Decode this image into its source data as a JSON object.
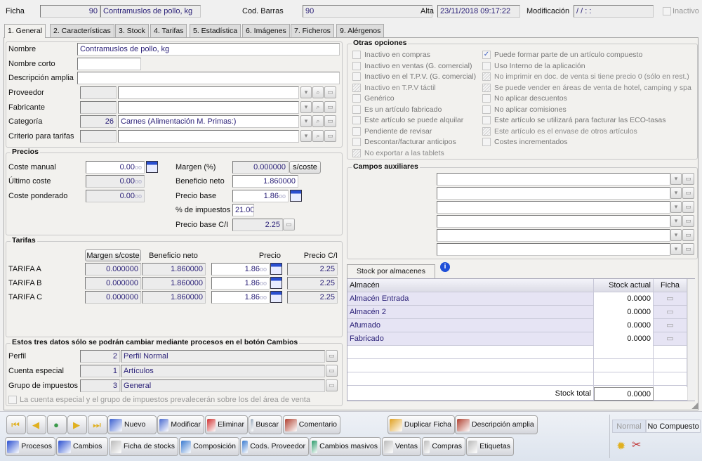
{
  "header": {
    "ficha_label": "Ficha",
    "ficha_num": "90",
    "ficha_name": "Contramuslos de pollo, kg",
    "barcode_label": "Cod. Barras",
    "barcode": "90",
    "alta_label": "Alta",
    "alta": "23/11/2018 09:17:22",
    "mod_label": "Modificación",
    "mod": "  /  /          :  :",
    "inactive_label": "Inactivo",
    "inactive_checked": false
  },
  "tabs": [
    "1. General",
    "2. Características",
    "3. Stock",
    "4. Tarifas",
    "5. Estadística",
    "6. Imágenes",
    "7. Ficheros",
    "9. Alérgenos"
  ],
  "general": {
    "rows": [
      {
        "label": "Nombre",
        "value": "Contramuslos de pollo, kg"
      },
      {
        "label": "Nombre corto",
        "value": ""
      },
      {
        "label": "Descripción amplia",
        "value": ""
      },
      {
        "label": "Proveedor",
        "code": "",
        "value": ""
      },
      {
        "label": "Fabricante",
        "code": "",
        "value": ""
      },
      {
        "label": "Categoría",
        "code": "26",
        "value": "Carnes (Alimentación M. Primas:)"
      },
      {
        "label": "Criterio para tarifas",
        "code": "",
        "value": ""
      }
    ]
  },
  "precios": {
    "title": "Precios",
    "coste_manual_label": "Coste manual",
    "coste_manual": "0.00",
    "decimals": "oo",
    "ultimo_coste_label": "Último coste",
    "ultimo_coste": "0.00",
    "coste_pond_label": "Coste ponderado",
    "coste_pond": "0.00",
    "margen_label": "Margen (%)",
    "margen": "0.000000",
    "s_coste_button": "s/coste",
    "beneficio_label": "Beneficio neto",
    "beneficio": "1.860000",
    "precio_base_label": "Precio base",
    "precio_base": "1.86",
    "impuestos_label": "% de impuestos",
    "impuestos": "21.00",
    "precio_ci_label": "Precio base C/I",
    "precio_ci": "2.25"
  },
  "tarifas": {
    "title": "Tarifas",
    "col_margen": "Margen s/coste",
    "col_beneficio": "Beneficio neto",
    "col_precio": "Precio",
    "col_precio_ci": "Precio C/I",
    "rows": [
      {
        "name": "TARIFA A",
        "margen": "0.000000",
        "beneficio": "1.860000",
        "precio": "1.86",
        "precio_ci": "2.25"
      },
      {
        "name": "TARIFA B",
        "margen": "0.000000",
        "beneficio": "1.860000",
        "precio": "1.86",
        "precio_ci": "2.25"
      },
      {
        "name": "TARIFA C",
        "margen": "0.000000",
        "beneficio": "1.860000",
        "precio": "1.86",
        "precio_ci": "2.25"
      }
    ]
  },
  "cambios": {
    "title": "Estos tres datos sólo se podrán cambiar mediante procesos en el botón Cambios",
    "rows": [
      {
        "label": "Perfil",
        "code": "2",
        "value": "Perfil Normal"
      },
      {
        "label": "Cuenta especial",
        "code": "1",
        "value": "Artículos"
      },
      {
        "label": "Grupo de impuestos",
        "code": "3",
        "value": "General"
      }
    ],
    "note": "La cuenta especial y el grupo de impuestos prevalecerán sobre los del área de venta"
  },
  "otras": {
    "title": "Otras opciones",
    "col1": [
      {
        "label": "Inactivo en compras",
        "state": "off"
      },
      {
        "label": "Inactivo en ventas (G. comercial)",
        "state": "off"
      },
      {
        "label": "Inactivo en el T.P.V. (G. comercial)",
        "state": "off"
      },
      {
        "label": "Inactivo en T.P.V táctil",
        "state": "disabled"
      },
      {
        "label": "Genérico",
        "state": "off"
      },
      {
        "label": "Es un artículo fabricado",
        "state": "off"
      },
      {
        "label": "Este artículo se puede alquilar",
        "state": "off"
      },
      {
        "label": "Pendiente de revisar",
        "state": "off"
      },
      {
        "label": "Descontar/facturar anticipos",
        "state": "off"
      },
      {
        "label": "No exportar a las tablets",
        "state": "disabled"
      }
    ],
    "col2": [
      {
        "label": "Puede formar parte de un artículo compuesto",
        "state": "on"
      },
      {
        "label": "Uso Interno de la aplicación",
        "state": "off"
      },
      {
        "label": "No imprimir en doc. de venta si tiene precio 0 (sólo en rest.)",
        "state": "disabled"
      },
      {
        "label": "Se puede vender en áreas de venta de hotel, camping y spa",
        "state": "disabled"
      },
      {
        "label": "No aplicar descuentos",
        "state": "off"
      },
      {
        "label": "No aplicar comisiones",
        "state": "off"
      },
      {
        "label": "Este artículo se utilizará para facturar las ECO-tasas",
        "state": "off"
      },
      {
        "label": "Este artículo es el envase de otros artículos",
        "state": "disabled"
      },
      {
        "label": "Costes incrementados",
        "state": "off"
      }
    ]
  },
  "campos": {
    "title": "Campos auxiliares",
    "rows": [
      "",
      "",
      "",
      "",
      "",
      ""
    ]
  },
  "stock": {
    "tab": "Stock por almacenes",
    "col_almacen": "Almacén",
    "col_stock": "Stock actual",
    "col_ficha": "Ficha",
    "rows": [
      {
        "almacen": "Almacén Entrada",
        "stock": "0.0000"
      },
      {
        "almacen": "Almacén 2",
        "stock": "0.0000"
      },
      {
        "almacen": "Afumado",
        "stock": "0.0000"
      },
      {
        "almacen": "Fabricado",
        "stock": "0.0000"
      }
    ],
    "total_label": "Stock total",
    "total": "0.0000"
  },
  "toolbar": {
    "row1": [
      {
        "label": "Nuevo",
        "icon": "new-icon",
        "color": "#3a5fd0"
      },
      {
        "label": "Modificar",
        "icon": "edit-icon",
        "color": "#4a6ad0"
      },
      {
        "label": "Eliminar",
        "icon": "delete-icon",
        "color": "#d03030"
      },
      {
        "label": "Buscar",
        "icon": "search-icon",
        "color": "#9ab"
      },
      {
        "label": "Comentario",
        "icon": "comment-icon",
        "color": "#b04030"
      },
      {
        "label": "Duplicar Ficha",
        "icon": "duplicate-icon",
        "color": "#e0a020"
      },
      {
        "label": "Descripción amplia",
        "icon": "description-icon",
        "color": "#b04030"
      }
    ],
    "row2": [
      {
        "label": "Procesos",
        "icon": "process-icon",
        "color": "#2a4fd0"
      },
      {
        "label": "Cambios",
        "icon": "changes-icon",
        "color": "#2a4fd0"
      },
      {
        "label": "Ficha de stocks",
        "icon": "stock-card-icon",
        "color": "#bbb"
      },
      {
        "label": "Composición",
        "icon": "composition-icon",
        "color": "#3a7ad0"
      },
      {
        "label": "Cods. Proveedor",
        "icon": "supplier-codes-icon",
        "color": "#3a7ad0"
      },
      {
        "label": "Cambios masivos",
        "icon": "bulk-changes-icon",
        "color": "#2a9a6a"
      },
      {
        "label": "Ventas",
        "icon": "sales-icon",
        "color": "#bbb"
      },
      {
        "label": "Compras",
        "icon": "purchases-icon",
        "color": "#bbb"
      },
      {
        "label": "Etiquetas",
        "icon": "labels-icon",
        "color": "#bbb"
      }
    ],
    "mode": "Normal",
    "compuesto": "No Compuesto"
  }
}
